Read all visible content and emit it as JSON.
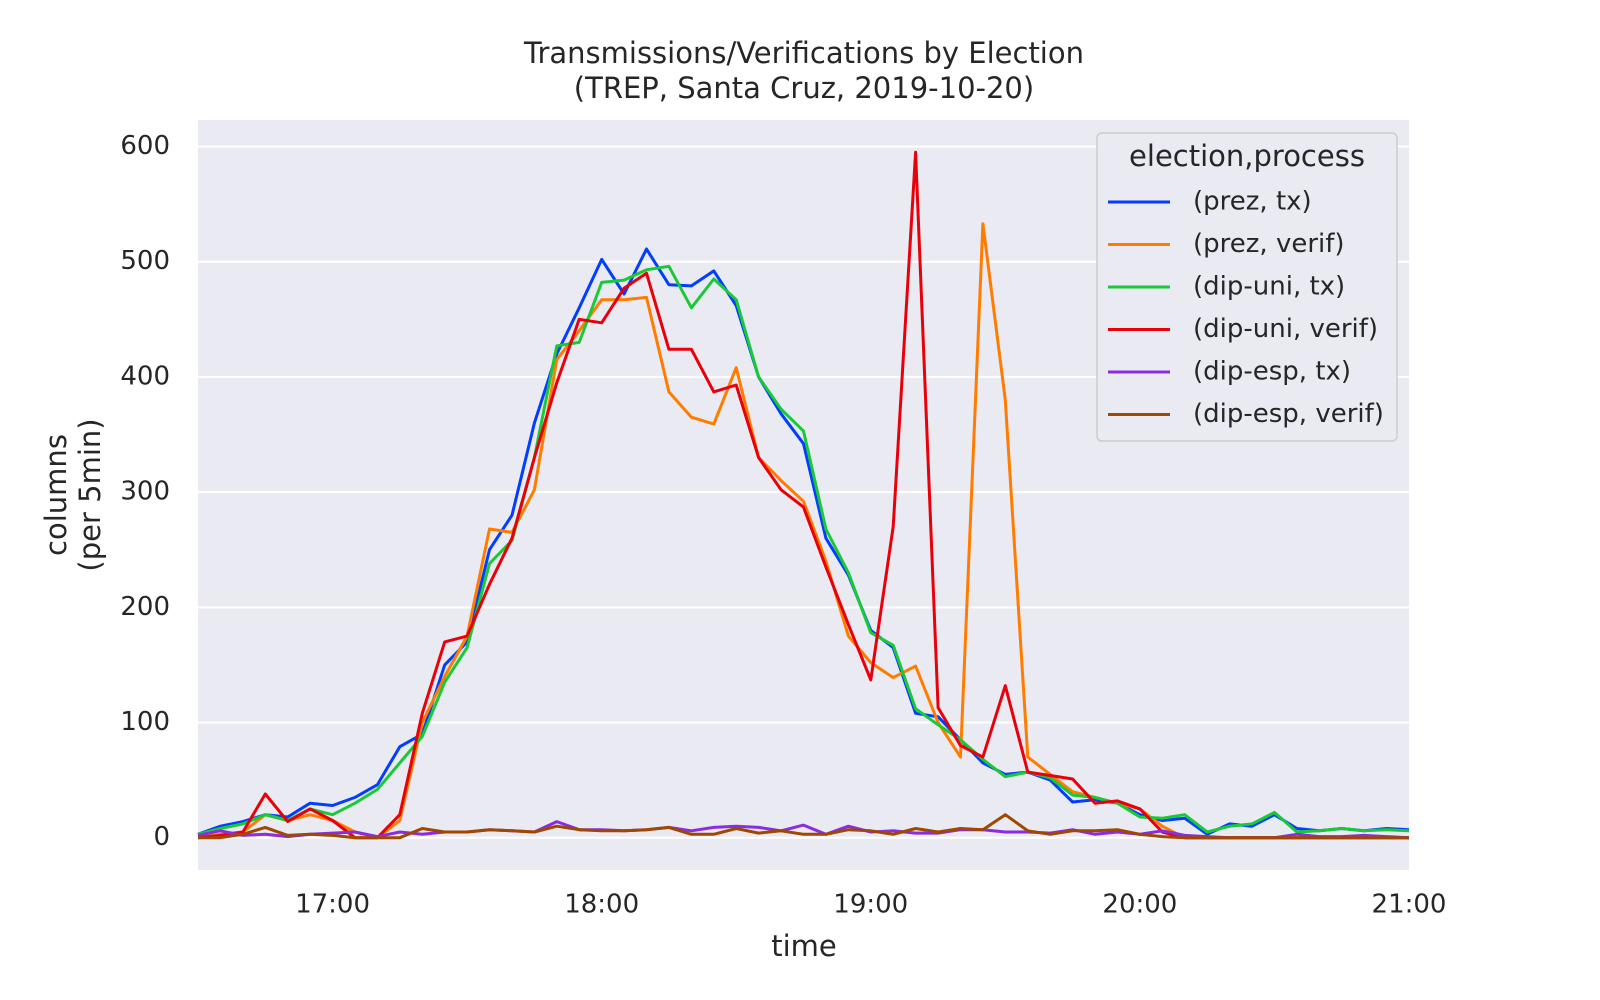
{
  "chart_data": {
    "type": "line",
    "title": [
      "Transmissions/Verifications by Election",
      "(TREP, Santa Cruz, 2019-10-20)"
    ],
    "xlabel": "time",
    "ylabel": [
      "columns",
      "(per 5min)"
    ],
    "legend_title": "election,process",
    "legend": "upper right",
    "grid": "y",
    "x": [
      "16:30",
      "16:35",
      "16:40",
      "16:45",
      "16:50",
      "16:55",
      "17:00",
      "17:05",
      "17:10",
      "17:15",
      "17:20",
      "17:25",
      "17:30",
      "17:35",
      "17:40",
      "17:45",
      "17:50",
      "17:55",
      "18:00",
      "18:05",
      "18:10",
      "18:15",
      "18:20",
      "18:25",
      "18:30",
      "18:35",
      "18:40",
      "18:45",
      "18:50",
      "18:55",
      "19:00",
      "19:05",
      "19:10",
      "19:15",
      "19:20",
      "19:25",
      "19:30",
      "19:35",
      "19:40",
      "19:45",
      "19:50",
      "19:55",
      "20:00",
      "20:05",
      "20:10",
      "20:15",
      "20:20",
      "20:25",
      "20:30",
      "20:35",
      "20:40",
      "20:45",
      "20:50",
      "20:55",
      "21:00"
    ],
    "xlim": [
      "16:30",
      "21:00"
    ],
    "xticks": [
      "17:00",
      "18:00",
      "19:00",
      "20:00",
      "21:00"
    ],
    "ylim": [
      -28,
      623
    ],
    "yticks": [
      0,
      100,
      200,
      300,
      400,
      500,
      600
    ],
    "series": [
      {
        "name": "(prez, tx)",
        "color": "#023eff",
        "values": [
          3,
          10,
          14,
          20,
          18,
          30,
          28,
          35,
          46,
          79,
          90,
          150,
          170,
          250,
          280,
          360,
          420,
          460,
          502,
          472,
          511,
          480,
          479,
          492,
          462,
          400,
          368,
          342,
          260,
          228,
          180,
          165,
          108,
          105,
          85,
          65,
          55,
          57,
          50,
          31,
          33,
          30,
          20,
          15,
          17,
          3,
          12,
          10,
          20,
          8,
          6,
          8,
          6,
          8,
          7
        ]
      },
      {
        "name": "(prez, verif)",
        "color": "#ff7c00",
        "values": [
          0,
          3,
          5,
          20,
          15,
          20,
          15,
          5,
          0,
          15,
          100,
          140,
          175,
          268,
          265,
          302,
          415,
          440,
          467,
          467,
          469,
          387,
          365,
          359,
          408,
          330,
          310,
          292,
          240,
          175,
          152,
          139,
          149,
          100,
          70,
          533,
          380,
          70,
          55,
          40,
          35,
          30,
          25,
          10,
          0,
          0,
          0,
          0,
          0,
          0,
          0,
          0,
          0,
          0,
          0
        ]
      },
      {
        "name": "(dip-uni, tx)",
        "color": "#1ac938",
        "values": [
          3,
          8,
          12,
          20,
          15,
          25,
          20,
          30,
          42,
          65,
          88,
          135,
          165,
          238,
          258,
          330,
          427,
          430,
          482,
          484,
          493,
          496,
          460,
          485,
          467,
          400,
          372,
          353,
          268,
          230,
          178,
          167,
          112,
          98,
          85,
          68,
          53,
          57,
          52,
          37,
          35,
          30,
          18,
          17,
          20,
          5,
          10,
          12,
          22,
          5,
          6,
          8,
          6,
          7,
          6
        ]
      },
      {
        "name": "(dip-uni, verif)",
        "color": "#e8000b",
        "values": [
          0,
          2,
          5,
          38,
          14,
          25,
          15,
          0,
          0,
          20,
          108,
          170,
          175,
          220,
          260,
          330,
          395,
          450,
          447,
          477,
          490,
          424,
          424,
          387,
          393,
          330,
          302,
          287,
          235,
          185,
          137,
          270,
          595,
          113,
          80,
          70,
          132,
          57,
          54,
          51,
          30,
          32,
          25,
          5,
          0,
          0,
          0,
          0,
          0,
          0,
          0,
          0,
          0,
          0,
          0
        ]
      },
      {
        "name": "(dip-esp, tx)",
        "color": "#8b2be2",
        "values": [
          2,
          6,
          2,
          3,
          1,
          3,
          4,
          5,
          1,
          5,
          3,
          5,
          5,
          7,
          6,
          5,
          14,
          7,
          7,
          6,
          7,
          9,
          6,
          9,
          10,
          9,
          6,
          11,
          3,
          10,
          5,
          6,
          4,
          4,
          7,
          7,
          5,
          5,
          4,
          7,
          3,
          5,
          3,
          6,
          2,
          1,
          0,
          0,
          0,
          3,
          1,
          1,
          2,
          1,
          0
        ]
      },
      {
        "name": "(dip-esp, verif)",
        "color": "#9f4800",
        "values": [
          0,
          0,
          3,
          9,
          2,
          3,
          2,
          0,
          0,
          0,
          8,
          5,
          5,
          7,
          6,
          5,
          10,
          7,
          6,
          6,
          7,
          9,
          3,
          3,
          8,
          4,
          6,
          3,
          3,
          7,
          6,
          3,
          8,
          5,
          8,
          7,
          20,
          6,
          3,
          6,
          6,
          7,
          3,
          1,
          0,
          0,
          0,
          0,
          0,
          0,
          0,
          0,
          0,
          0,
          0
        ]
      }
    ]
  }
}
